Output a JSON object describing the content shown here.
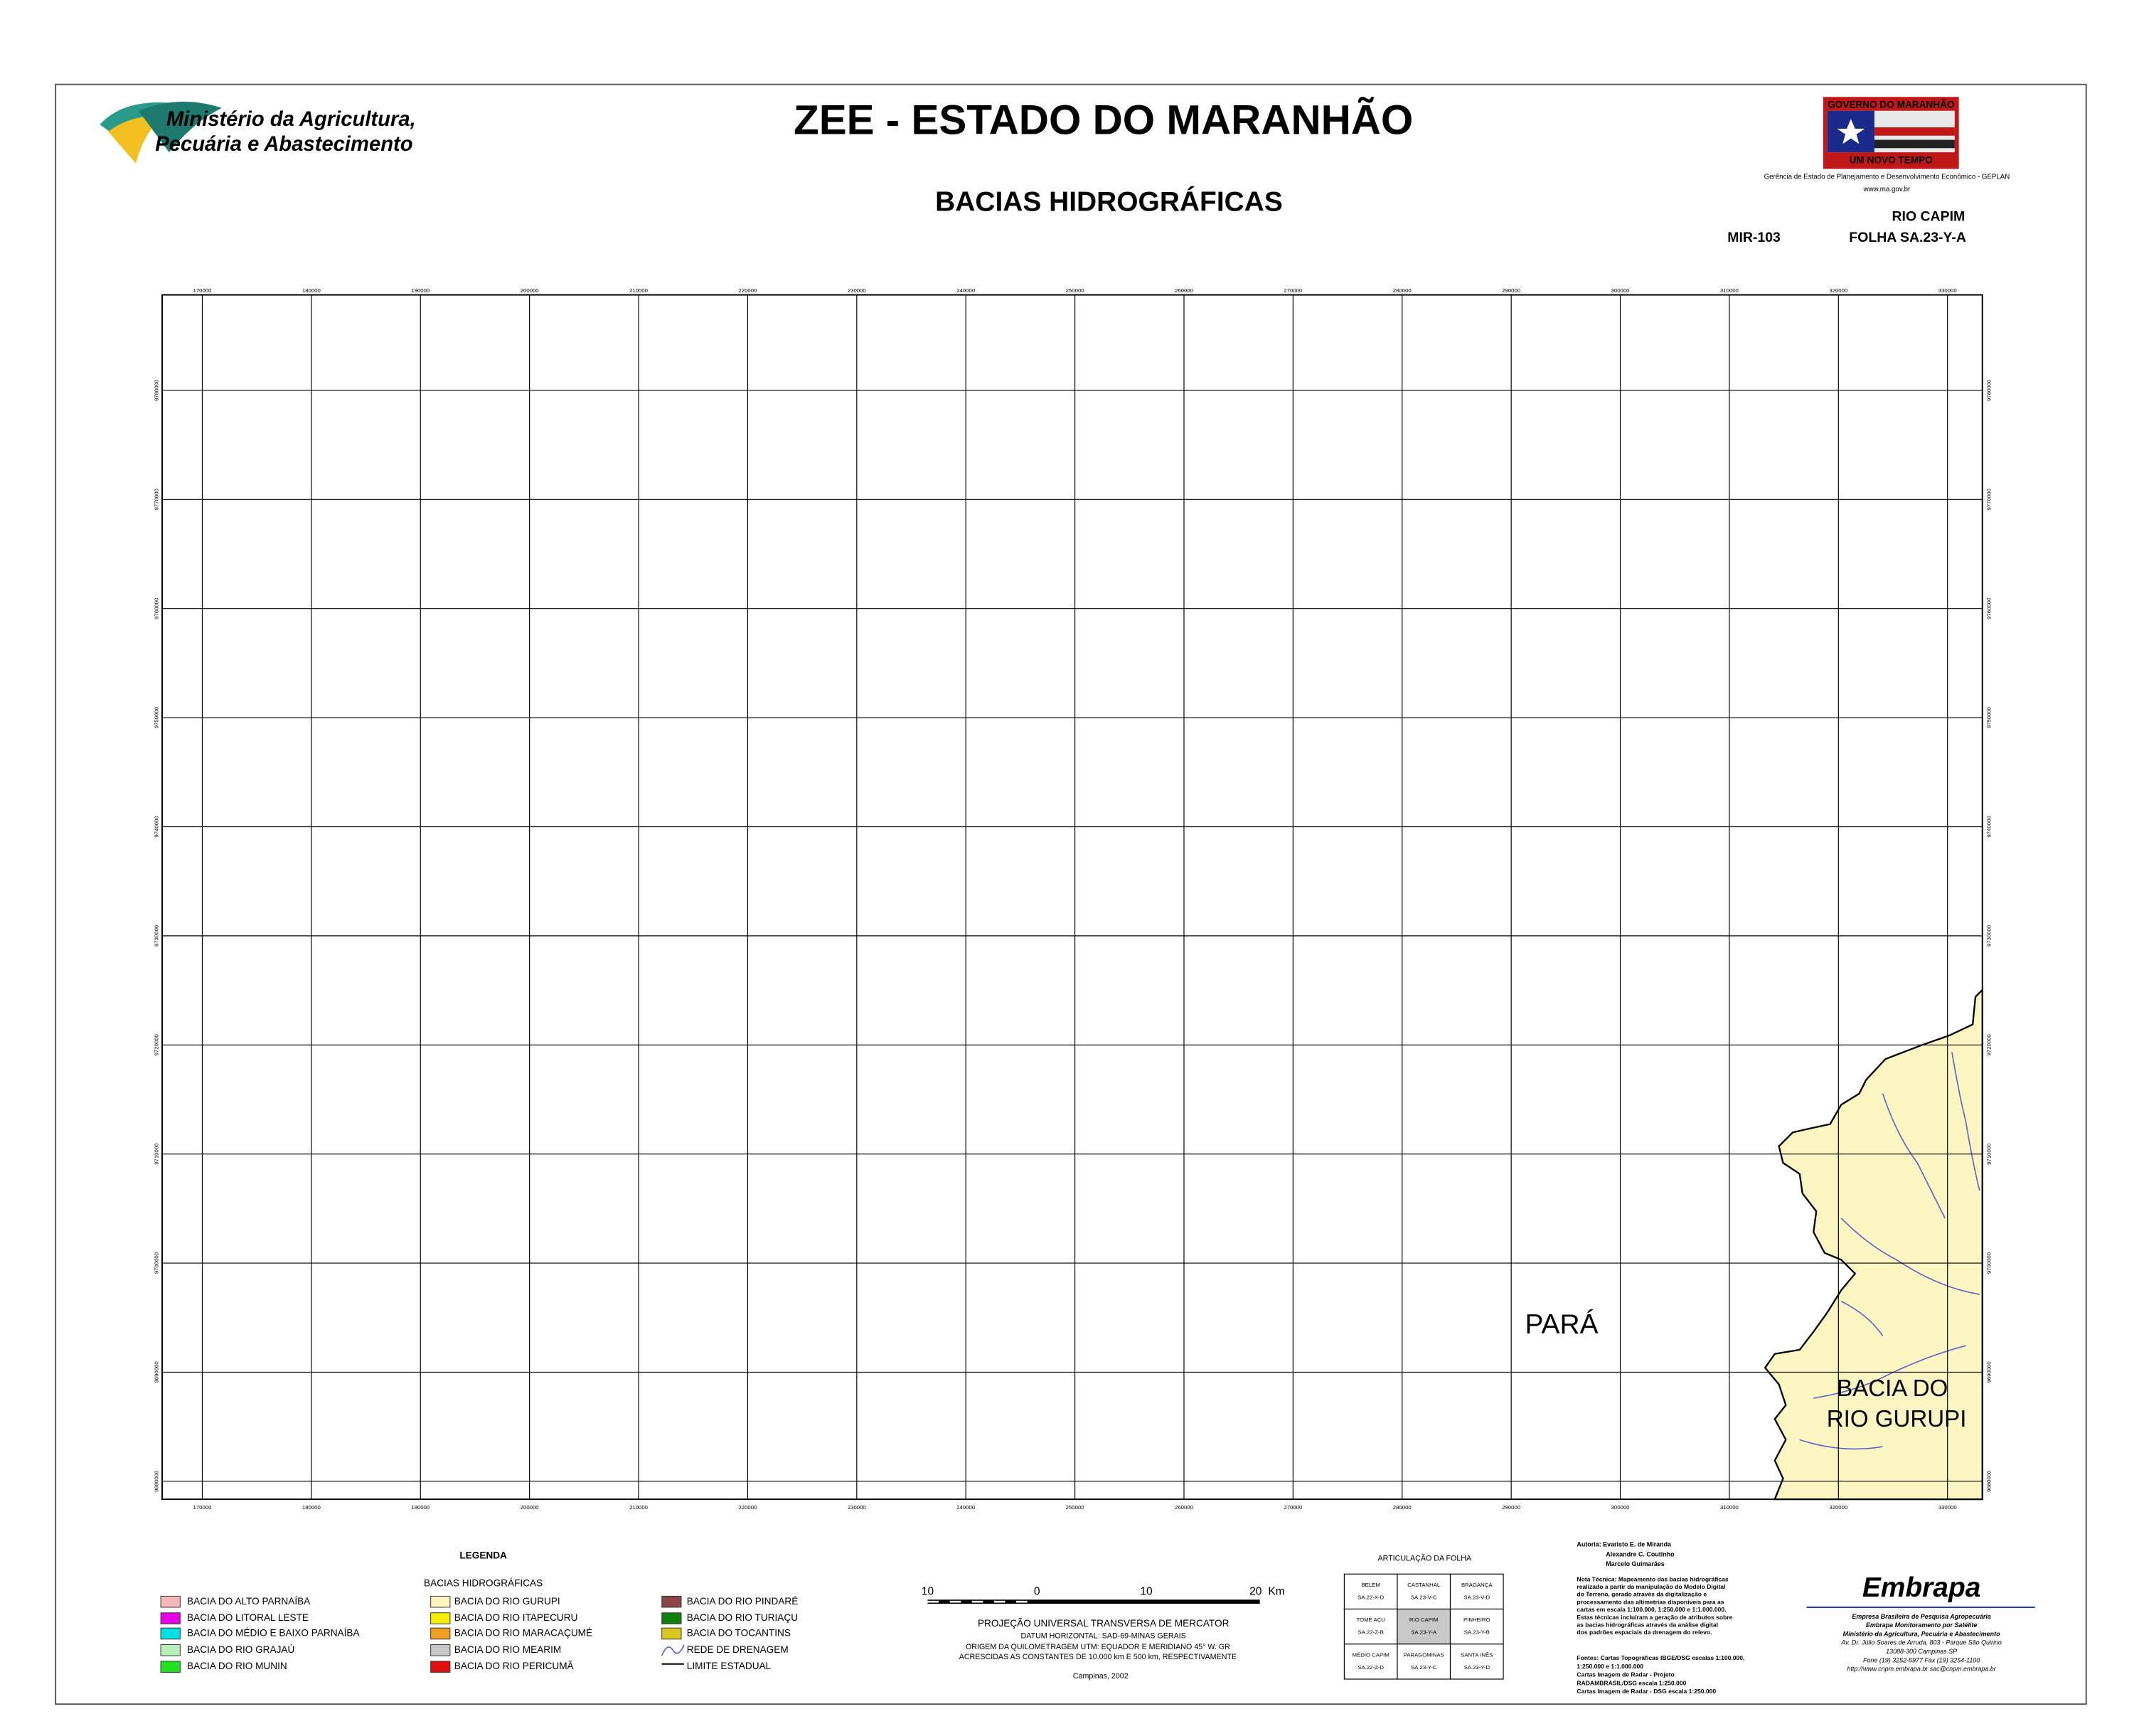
{
  "header": {
    "ministry_line1": "Ministério da Agricultura,",
    "ministry_line2": "Pecuária e Abastecimento",
    "title": "ZEE - ESTADO DO MARANHÃO",
    "subtitle": "BACIAS HIDROGRÁFICAS",
    "gov_top": "GOVERNO DO MARANHÃO",
    "gov_bottom": "UM NOVO TEMPO",
    "gov_agency": "Gerência de Estado de Planejamento e Desenvolvimento Econômico - GEPLAN",
    "gov_site": "www.ma.gov.br",
    "sheet_name": "RIO CAPIM",
    "sheet_code": "MIR-103",
    "sheet_folha": "FOLHA SA.23-Y-A"
  },
  "map": {
    "x_grid": [
      170000,
      180000,
      190000,
      200000,
      210000,
      220000,
      230000,
      240000,
      250000,
      260000,
      270000,
      280000,
      290000,
      300000,
      310000,
      320000,
      330000
    ],
    "y_grid": [
      9780000,
      9770000,
      9760000,
      9750000,
      9740000,
      9730000,
      9720000,
      9710000,
      9700000,
      9690000,
      9680000
    ],
    "label_para": "PARÁ",
    "label_basin_line1": "BACIA DO",
    "label_basin_line2": "RIO GURUPI"
  },
  "legend": {
    "title": "LEGENDA",
    "subtitle": "BACIAS HIDROGRÁFICAS",
    "items": [
      {
        "name": "BACIA DO ALTO PARNAÍBA",
        "color": "#f4b8b8"
      },
      {
        "name": "BACIA DO LITORAL LESTE",
        "color": "#e600e6"
      },
      {
        "name": "BACIA DO MÉDIO E BAIXO PARNAÍBA",
        "color": "#00e0e0"
      },
      {
        "name": "BACIA DO RIO GRAJAÚ",
        "color": "#b8f0b8"
      },
      {
        "name": "BACIA DO RIO MUNIN",
        "color": "#22e022"
      },
      {
        "name": "BACIA DO RIO GURUPI",
        "color": "#fbf5c2"
      },
      {
        "name": "BACIA DO RIO ITAPECURU",
        "color": "#f5f000"
      },
      {
        "name": "BACIA DO RIO MARACAÇUMÉ",
        "color": "#f0a020"
      },
      {
        "name": "BACIA DO RIO MEARIM",
        "color": "#c8c8c8"
      },
      {
        "name": "BACIA DO RIO PERICUMÃ",
        "color": "#e01010"
      },
      {
        "name": "BACIA DO RIO PINDARÉ",
        "color": "#8a4545"
      },
      {
        "name": "BACIA DO RIO TURIAÇU",
        "color": "#108010"
      },
      {
        "name": "BACIA DO TOCANTINS",
        "color": "#d8c820"
      }
    ],
    "drainage": "REDE DE DRENAGEM",
    "boundary": "LIMITE ESTADUAL"
  },
  "scale": {
    "labels": [
      "10",
      "0",
      "10",
      "20"
    ],
    "unit": "Km",
    "projection": "PROJEÇÃO UNIVERSAL TRANSVERSA DE MERCATOR",
    "datum": "DATUM HORIZONTAL: SAD-69-MINAS GERAIS",
    "origin": "ORIGEM DA QUILOMETRAGEM UTM: EQUADOR E MERIDIANO 45° W. GR",
    "constants": "ACRESCIDAS AS CONSTANTES DE 10.000 km E 500 km, RESPECTIVAMENTE",
    "place_date": "Campinas, 2002"
  },
  "articulation": {
    "title": "ARTICULAÇÃO DA FOLHA",
    "cells": [
      [
        [
          "BELEM",
          "SA.22-X-D"
        ],
        [
          "CASTANHAL",
          "SA.23-V-C"
        ],
        [
          "BRAGANÇA",
          "SA.23-V-D"
        ]
      ],
      [
        [
          "TOMÉ AÇU",
          "SA.22-Z-B"
        ],
        [
          "RIO CAPIM",
          "SA.23-Y-A"
        ],
        [
          "PINHEIRO",
          "SA.23-Y-B"
        ]
      ],
      [
        [
          "MÉDIO CAPIM",
          "SA.22-Z-D"
        ],
        [
          "PARAGOMINAS",
          "SA.23-Y-C"
        ],
        [
          "SANTA INÊS",
          "SA.23-Y-D"
        ]
      ]
    ]
  },
  "credits": {
    "authors": [
      "Autoria: Evaristo E. de Miranda",
      "Alexandre C. Coutinho",
      "Marcelo Guimarães"
    ],
    "note": [
      "Nota Técnica: Mapeamento das bacias hidrográficas",
      "realizado a partir da manipulação do Modelo Digital",
      "do Terreno, gerado através da digitalização e",
      "processamento das altimetrias disponíveis para as",
      "cartas em escala 1:100.000, 1:250.000 e 1:1.000.000.",
      "Estas técnicas incluíram a geração de atributos sobre",
      "as bacias hidrográficas através da análise digital",
      "dos padrões espaciais da drenagem do relevo."
    ],
    "sources": [
      "Fontes: Cartas Topográficas IBGE/DSG escalas 1:100.000,",
      "1:250.000 e 1:1.000.000",
      "Cartas Imagem de Radar - Projeto",
      "RADAMBRASIL/DSG escala 1:250.000",
      "Cartas Imagem de Radar - DSG escala 1:250.000"
    ]
  },
  "embrapa": {
    "logo": "Embrapa",
    "lines": [
      "Empresa Brasileira de Pesquisa Agropecuária",
      "Embrapa Monitoramento por Satélite",
      "Ministério da Agricultura, Pecuária e Abastecimento",
      "Av. Dr. Júlio Soares de Arruda, 803 - Parque São Quirino",
      "13088-300 Campinas SP",
      "Fone (19) 3252-5977 Fax (19) 3254-1100",
      "http://www.cnpm.embrapa.br  sac@cnpm.embrapa.br"
    ]
  }
}
